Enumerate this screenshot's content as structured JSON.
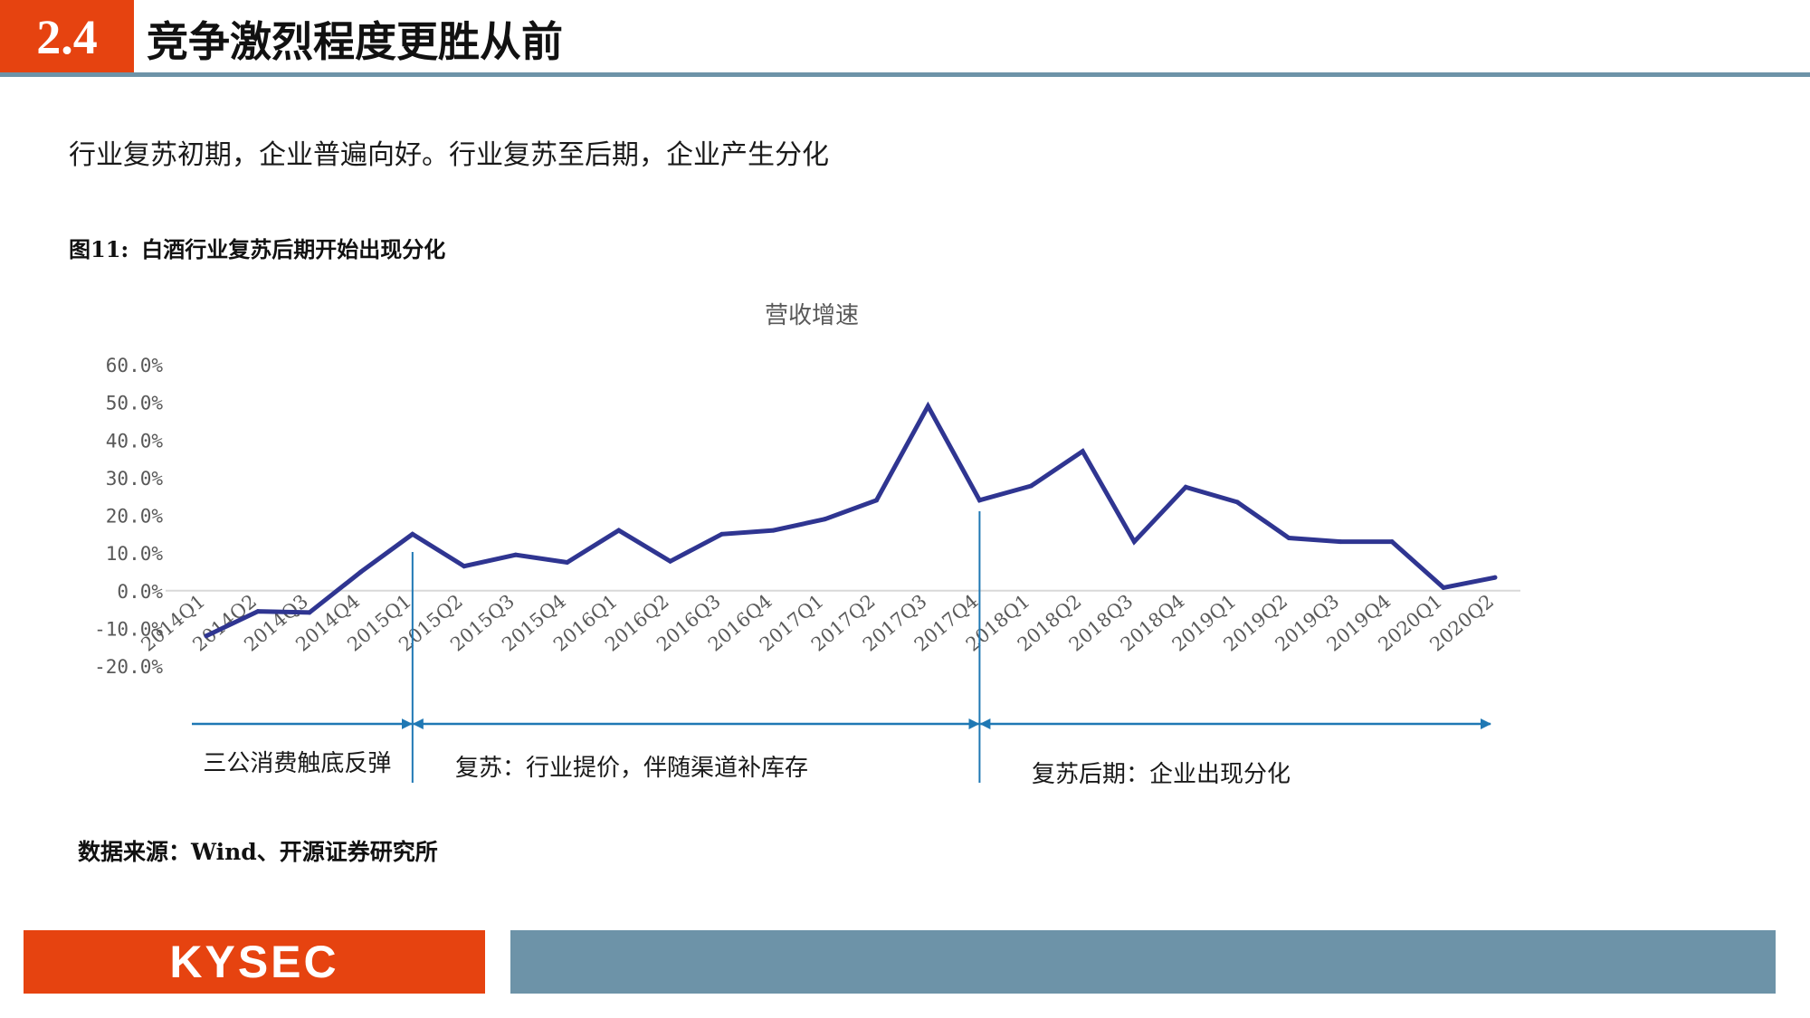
{
  "header": {
    "section_number": "2.4",
    "title": "竞争激烈程度更胜从前"
  },
  "subtitle": "行业复苏初期，企业普遍向好。行业复苏至后期，企业产生分化",
  "figure": {
    "label": "图11:",
    "caption": "白酒行业复苏后期开始出现分化"
  },
  "chart_data": {
    "type": "line",
    "title": "营收增速",
    "categories": [
      "2014Q1",
      "2014Q2",
      "2014Q3",
      "2014Q4",
      "2015Q1",
      "2015Q2",
      "2015Q3",
      "2015Q4",
      "2016Q1",
      "2016Q2",
      "2016Q3",
      "2016Q4",
      "2017Q1",
      "2017Q2",
      "2017Q3",
      "2017Q4",
      "2018Q1",
      "2018Q2",
      "2018Q3",
      "2018Q4",
      "2019Q1",
      "2019Q2",
      "2019Q3",
      "2019Q4",
      "2020Q1",
      "2020Q2"
    ],
    "series": [
      {
        "values": [
          -12.0,
          -5.5,
          -5.8,
          5.0,
          15.0,
          6.5,
          9.5,
          7.5,
          16.0,
          7.8,
          15.0,
          16.0,
          19.0,
          24.0,
          49.0,
          24.0,
          27.8,
          37.0,
          13.0,
          27.5,
          23.5,
          14.0,
          13.0,
          13.0,
          0.8,
          3.5
        ]
      }
    ],
    "yticks": [
      "60.0%",
      "50.0%",
      "40.0%",
      "30.0%",
      "20.0%",
      "10.0%",
      "0.0%",
      "-10.0%",
      "-20.0%"
    ],
    "ylim": [
      -20,
      60
    ],
    "grid": false,
    "line_color": "#2f3591",
    "phases": [
      {
        "label": "三公消费触底反弹",
        "from": "2014Q1",
        "to": "2015Q1"
      },
      {
        "label": "复苏：行业提价，伴随渠道补库存",
        "from": "2015Q1",
        "to": "2017Q4"
      },
      {
        "label": "复苏后期：企业出现分化",
        "from": "2017Q4",
        "to": "2020Q2"
      }
    ],
    "annotation_color": "#1f78b4"
  },
  "source": "数据来源：Wind、开源证券研究所",
  "footer": {
    "logo_text": "KYSEC"
  }
}
